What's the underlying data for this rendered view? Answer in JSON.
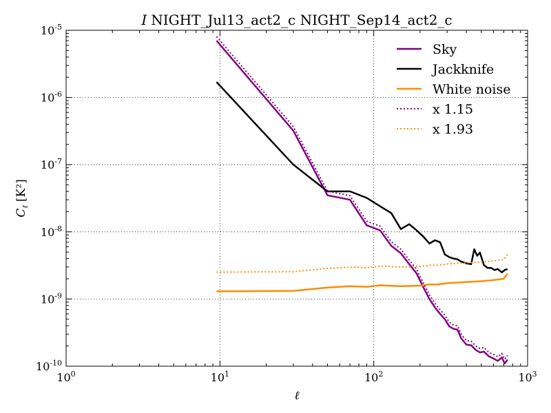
{
  "chart_data": {
    "type": "line",
    "title": {
      "symbol": "I",
      "text": "NIGHT_Jul13_act2_c NIGHT_Sep14_act2_c"
    },
    "xlabel": "ℓ",
    "ylabel": {
      "main": "C",
      "sub": "ℓ",
      "unit": "[K²]"
    },
    "xscale": "log",
    "yscale": "log",
    "xlim": [
      1,
      1000
    ],
    "ylim": [
      1e-10,
      1e-05
    ],
    "grid": true,
    "legend_position": "top-right",
    "xticks": [
      {
        "value": 1,
        "base": "10",
        "exp": "0"
      },
      {
        "value": 10,
        "base": "10",
        "exp": "1"
      },
      {
        "value": 100,
        "base": "10",
        "exp": "2"
      },
      {
        "value": 1000,
        "base": "10",
        "exp": "3"
      }
    ],
    "yticks": [
      {
        "value": 1e-10,
        "base": "10",
        "exp": "-10"
      },
      {
        "value": 1e-09,
        "base": "10",
        "exp": "-9"
      },
      {
        "value": 1e-08,
        "base": "10",
        "exp": "-8"
      },
      {
        "value": 1e-07,
        "base": "10",
        "exp": "-7"
      },
      {
        "value": 1e-06,
        "base": "10",
        "exp": "-6"
      },
      {
        "value": 1e-05,
        "base": "10",
        "exp": "-5"
      }
    ],
    "series": [
      {
        "name": "Sky",
        "color": "#800080",
        "style": "solid",
        "x": [
          9.5,
          30,
          50,
          70,
          90,
          110,
          130,
          150,
          170,
          190,
          210,
          230,
          250,
          270,
          290,
          310,
          330,
          350,
          370,
          400,
          430,
          460,
          490,
          520,
          560,
          600,
          640,
          680,
          710,
          740
        ],
        "y": [
          7e-06,
          3.2e-07,
          3.5e-08,
          3e-08,
          1.25e-08,
          1.05e-08,
          6.2e-09,
          4.8e-09,
          3.3e-09,
          2.4e-09,
          1.5e-09,
          1e-09,
          7.5e-10,
          6e-10,
          5e-10,
          3.9e-10,
          3.6e-10,
          3.5e-10,
          2.6e-10,
          2.1e-10,
          2.05e-10,
          1.75e-10,
          1.6e-10,
          1.65e-10,
          1.4e-10,
          1.3e-10,
          1.2e-10,
          1.35e-10,
          1.1e-10,
          1.25e-10
        ]
      },
      {
        "name": "Jackknife",
        "color": "#000000",
        "style": "solid",
        "x": [
          9.5,
          30,
          50,
          70,
          90,
          110,
          130,
          150,
          170,
          190,
          210,
          230,
          250,
          270,
          290,
          310,
          330,
          350,
          370,
          400,
          430,
          450,
          470,
          490,
          520,
          550,
          580,
          610,
          640,
          680,
          710,
          740
        ],
        "y": [
          1.7e-06,
          1e-07,
          4e-08,
          4e-08,
          3.2e-08,
          2.4e-08,
          1.9e-08,
          1.1e-08,
          1.3e-08,
          1.05e-08,
          8.5e-09,
          6.7e-09,
          7.5e-09,
          7e-09,
          4.6e-09,
          4.2e-09,
          4e-09,
          3.9e-09,
          3.6e-09,
          3.4e-09,
          3.3e-09,
          5.5e-09,
          4.4e-09,
          4.9e-09,
          3.2e-09,
          2.9e-09,
          2.9e-09,
          2.7e-09,
          2.8e-09,
          2.5e-09,
          2.7e-09,
          2.8e-09
        ]
      },
      {
        "name": "White noise",
        "color": "#ff8c00",
        "style": "solid",
        "x": [
          9.5,
          30,
          50,
          70,
          90,
          110,
          150,
          200,
          230,
          260,
          300,
          340,
          380,
          420,
          460,
          520,
          580,
          640,
          700,
          740
        ],
        "y": [
          1.3e-09,
          1.32e-09,
          1.48e-09,
          1.55e-09,
          1.52e-09,
          1.6e-09,
          1.55e-09,
          1.58e-09,
          1.65e-09,
          1.65e-09,
          1.72e-09,
          1.75e-09,
          1.78e-09,
          1.8e-09,
          1.82e-09,
          1.85e-09,
          1.9e-09,
          1.95e-09,
          2e-09,
          2.4e-09
        ]
      },
      {
        "name": "x 1.15",
        "color": "#800080",
        "style": "dotted",
        "x": [
          9.5,
          30,
          50,
          70,
          90,
          110,
          130,
          150,
          170,
          190,
          210,
          230,
          250,
          270,
          290,
          310,
          330,
          350,
          370,
          400,
          430,
          460,
          490,
          520,
          560,
          600,
          640,
          680,
          710,
          740
        ],
        "y": [
          8.05e-06,
          3.68e-07,
          4.03e-08,
          3.45e-08,
          1.44e-08,
          1.21e-08,
          7.13e-09,
          5.52e-09,
          3.8e-09,
          2.76e-09,
          1.73e-09,
          1.15e-09,
          8.6e-10,
          6.9e-10,
          5.75e-10,
          4.5e-10,
          4.1e-10,
          4e-10,
          3e-10,
          2.4e-10,
          2.36e-10,
          2e-10,
          1.84e-10,
          1.9e-10,
          1.6e-10,
          1.5e-10,
          1.38e-10,
          1.55e-10,
          1.27e-10,
          1.44e-10
        ]
      },
      {
        "name": "x 1.93",
        "color": "#ff8c00",
        "style": "dotted",
        "x": [
          9.5,
          30,
          50,
          70,
          90,
          110,
          150,
          200,
          230,
          260,
          300,
          340,
          380,
          420,
          460,
          520,
          580,
          640,
          700,
          740
        ],
        "y": [
          2.51e-09,
          2.55e-09,
          2.86e-09,
          2.99e-09,
          2.93e-09,
          3.09e-09,
          2.99e-09,
          3.05e-09,
          3.18e-09,
          3.18e-09,
          3.32e-09,
          3.38e-09,
          3.44e-09,
          3.47e-09,
          3.51e-09,
          3.57e-09,
          3.67e-09,
          3.76e-09,
          3.86e-09,
          4.63e-09
        ]
      }
    ]
  }
}
